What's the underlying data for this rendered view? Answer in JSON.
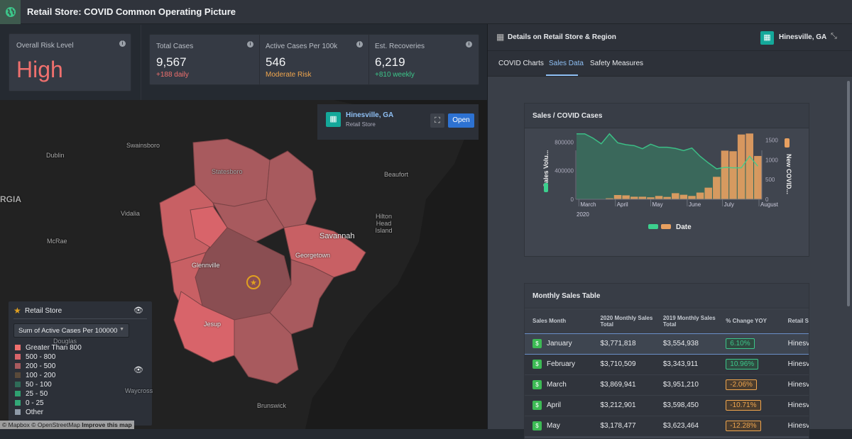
{
  "app": {
    "title": "Retail Store: COVID Common Operating Picture",
    "icon": "globe-icon"
  },
  "kpis": {
    "risk": {
      "label": "Overall Risk Level",
      "value": "High",
      "color": "#f0706e"
    },
    "total": {
      "label": "Total Cases",
      "value": "9,567",
      "sub": "+188 daily",
      "sub_color": "#f0706e"
    },
    "active": {
      "label": "Active Cases Per 100k",
      "value": "546",
      "sub": "Moderate Risk",
      "sub_color": "#f0a64e"
    },
    "recov": {
      "label": "Est. Recoveries",
      "value": "6,219",
      "sub": "+810 weekly",
      "sub_color": "#3cc68a"
    }
  },
  "map": {
    "popup": {
      "title": "Hinesville, GA",
      "subtitle": "Retail Store",
      "open_label": "Open"
    },
    "places": [
      "Dublin",
      "Swainsboro",
      "Statesboro",
      "Beaufort",
      "RGIA",
      "Vidalia",
      "Hilton Head Island",
      "Savannah",
      "McRae",
      "Georgetown",
      "Glennville",
      "Jesup",
      "Waycross",
      "Brunswick",
      "Douglas"
    ],
    "legend": {
      "layer": "Retail Store",
      "dropdown": "Sum of Active Cases Per 100000",
      "items": [
        {
          "label": "Greater Than 800",
          "color": "#f0706e"
        },
        {
          "label": "500 - 800",
          "color": "#d8646a"
        },
        {
          "label": "200 - 500",
          "color": "#a85a5e"
        },
        {
          "label": "100 - 200",
          "color": "#5a4a3a"
        },
        {
          "label": "50 - 100",
          "color": "#2f6b58"
        },
        {
          "label": "25 - 50",
          "color": "#2fa070"
        },
        {
          "label": "0 - 25",
          "color": "#33a878"
        },
        {
          "label": "Other",
          "color": "#8e9aa8"
        }
      ]
    },
    "attribution": {
      "mapbox": "© Mapbox",
      "osm": "© OpenStreetMap",
      "improve": "Improve this map"
    }
  },
  "panel": {
    "title": "Details on Retail Store & Region",
    "location": "Hinesville, GA",
    "tabs": [
      {
        "label": "COVID Charts"
      },
      {
        "label": "Sales Data",
        "active": true
      },
      {
        "label": "Safety Measures"
      }
    ]
  },
  "chart_data": {
    "type": "area+bar",
    "title": "Sales / COVID Cases",
    "xlabel": "Date",
    "ylabel_left": "Sales Volu...",
    "ylabel_right": "New COVID...",
    "x_ticks": [
      "March",
      "April",
      "May",
      "June",
      "July",
      "August"
    ],
    "x_year": "2020",
    "y_left_ticks": [
      "0",
      "400000",
      "800000"
    ],
    "y_left_range": [
      0,
      950000
    ],
    "y_right_ticks": [
      "0",
      "500",
      "1000",
      "1500"
    ],
    "y_right_range": [
      0,
      1700
    ],
    "dates": [
      "2020-02-28",
      "2020-03-06",
      "2020-03-13",
      "2020-03-20",
      "2020-03-27",
      "2020-04-03",
      "2020-04-10",
      "2020-04-17",
      "2020-04-24",
      "2020-05-01",
      "2020-05-08",
      "2020-05-15",
      "2020-05-22",
      "2020-05-29",
      "2020-06-05",
      "2020-06-12",
      "2020-06-19",
      "2020-06-26",
      "2020-07-03",
      "2020-07-10",
      "2020-07-17",
      "2020-07-24",
      "2020-07-31"
    ],
    "series": [
      {
        "values": [
          915000,
          915000,
          855000,
          776000,
          915000,
          790000,
          763000,
          750000,
          707000,
          770000,
          727000,
          727000,
          711000,
          681000,
          717000,
          601000,
          509000,
          426000,
          446000,
          440000,
          440000,
          601000,
          463000
        ],
        "color": "#3cd08e",
        "axis": "left",
        "kind": "area"
      },
      {
        "values": [
          0,
          0,
          0,
          0,
          25,
          108,
          100,
          65,
          65,
          50,
          85,
          60,
          155,
          115,
          85,
          170,
          295,
          570,
          1235,
          1220,
          1645,
          1670,
          1100
        ],
        "color": "#e8a060",
        "axis": "right",
        "kind": "bar"
      }
    ]
  },
  "table": {
    "title": "Monthly Sales Table",
    "headers": [
      "Sales Month",
      "2020 Monthly Sales Total",
      "2019 Monthly Sales Total",
      "% Change YOY",
      "Retail Store"
    ],
    "rows": [
      {
        "month": "January",
        "s2020": "$3,771,818",
        "s2019": "$3,554,938",
        "chg": "6.10%",
        "pos": true,
        "store": "Hinesville,"
      },
      {
        "month": "February",
        "s2020": "$3,710,509",
        "s2019": "$3,343,911",
        "chg": "10.96%",
        "pos": true,
        "store": "Hinesville,"
      },
      {
        "month": "March",
        "s2020": "$3,869,941",
        "s2019": "$3,951,210",
        "chg": "-2.06%",
        "pos": false,
        "store": "Hinesville,"
      },
      {
        "month": "April",
        "s2020": "$3,212,901",
        "s2019": "$3,598,450",
        "chg": "-10.71%",
        "pos": false,
        "store": "Hinesville,"
      },
      {
        "month": "May",
        "s2020": "$3,178,477",
        "s2019": "$3,623,464",
        "chg": "-12.28%",
        "pos": false,
        "store": "Hinesville,"
      }
    ]
  }
}
